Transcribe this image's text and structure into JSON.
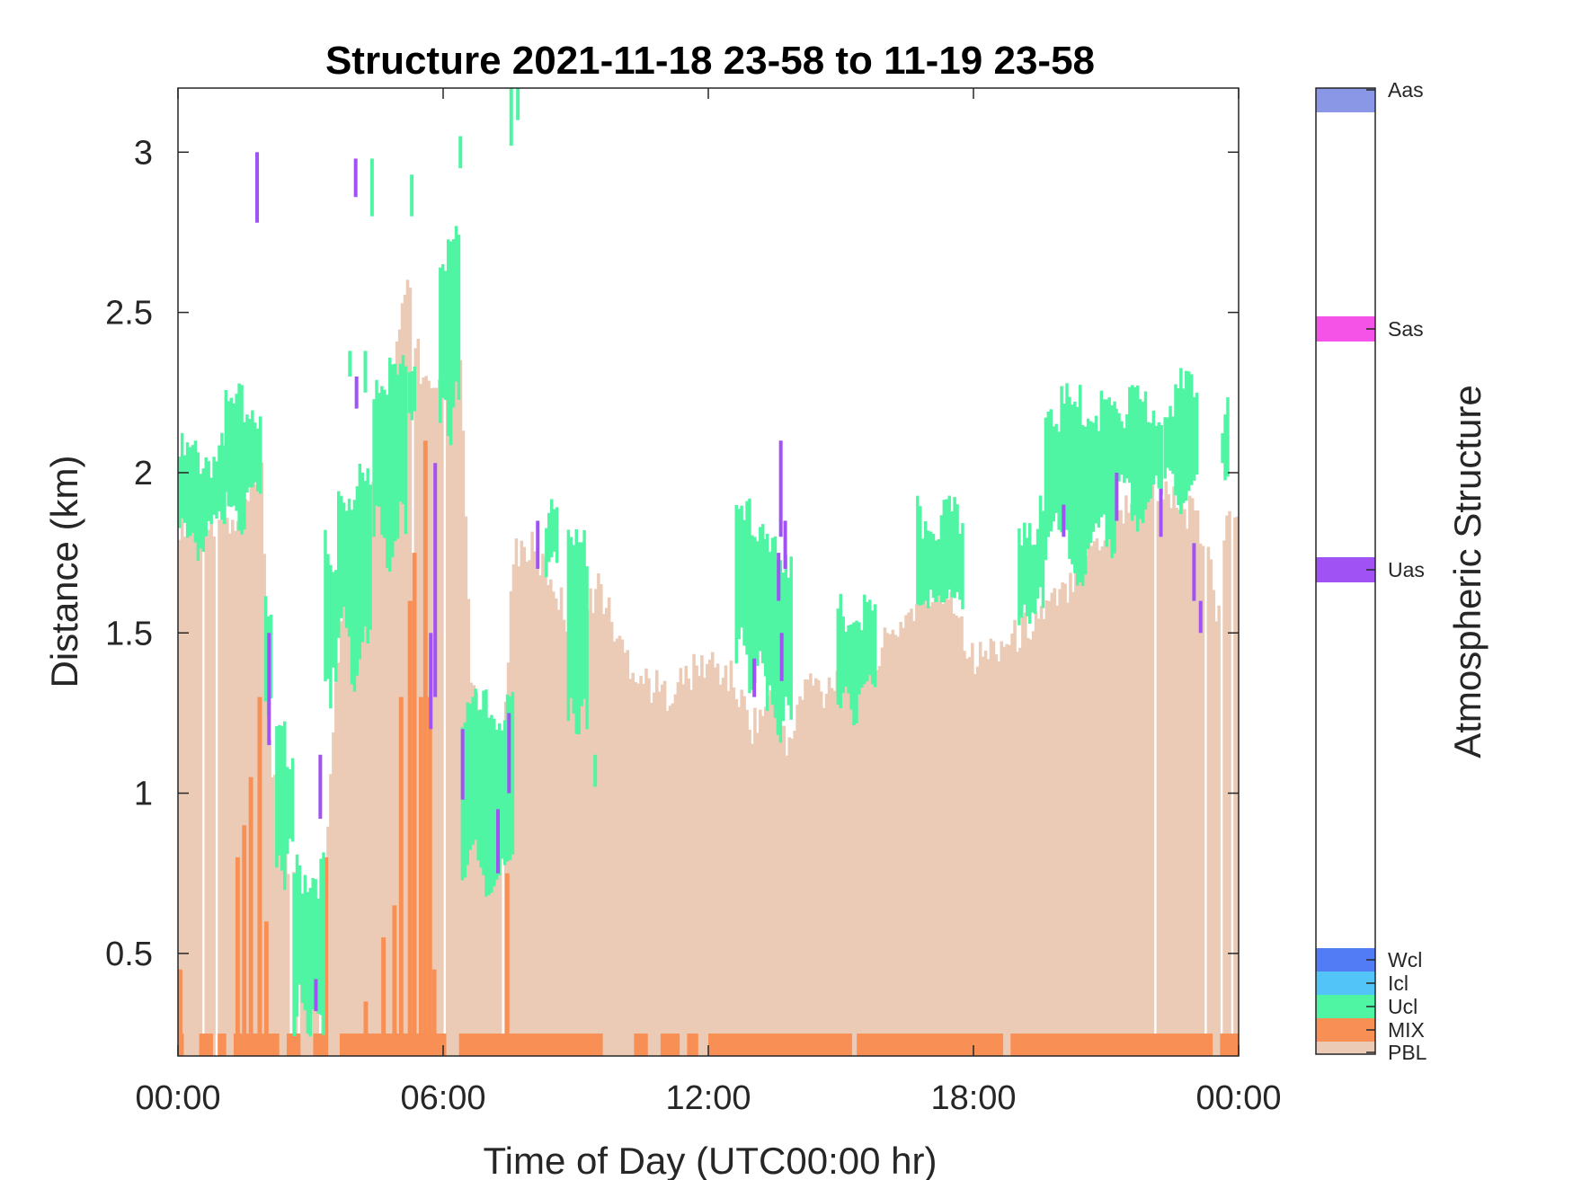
{
  "chart_data": {
    "type": "bar",
    "title": "Structure 2021-11-18 23-58 to 11-19 23-58",
    "xlabel": "Time of Day (UTC00:00 hr)",
    "ylabel": "Distance (km)",
    "colorbar_label": "Atmospheric Structure",
    "xlim": [
      0,
      24
    ],
    "ylim": [
      0.18,
      3.2
    ],
    "xticks": [
      0,
      6,
      12,
      18,
      24
    ],
    "xtick_labels": [
      "00:00",
      "06:00",
      "12:00",
      "18:00",
      "00:00"
    ],
    "yticks": [
      0.5,
      1,
      1.5,
      2,
      2.5,
      3
    ],
    "ytick_labels": [
      "0.5",
      "1",
      "1.5",
      "2",
      "2.5",
      "3"
    ],
    "grid": false,
    "legend": "right colorbar",
    "categories": [
      {
        "name": "PBL",
        "color": "#ebcbb6"
      },
      {
        "name": "MIX",
        "color": "#f88f55"
      },
      {
        "name": "Ucl",
        "color": "#4ff5a3"
      },
      {
        "name": "Icl",
        "color": "#53c4f8"
      },
      {
        "name": "Wcl",
        "color": "#527cf5"
      },
      {
        "name": "Uas",
        "color": "#a052f5"
      },
      {
        "name": "Sas",
        "color": "#f553e7"
      },
      {
        "name": "Aas",
        "color": "#8a96e6"
      }
    ],
    "pbl_profile": {
      "t": [
        0,
        0.5,
        1,
        1.3,
        1.5,
        1.8,
        1.9,
        2.1,
        2.4,
        2.7,
        3.0,
        3.2,
        3.4,
        3.7,
        4.0,
        4.3,
        4.6,
        4.9,
        5.2,
        5.5,
        5.8,
        6.0,
        6.2,
        6.4,
        6.6,
        6.8,
        7.0,
        7.2,
        7.4,
        7.6,
        8.0,
        8.5,
        9.0,
        9.5,
        10.0,
        10.5,
        11.0,
        11.5,
        12.0,
        12.5,
        13.0,
        13.5,
        13.8,
        14.0,
        14.3,
        14.6,
        15.0,
        15.5,
        16.0,
        16.5,
        17.0,
        17.5,
        18.0,
        18.5,
        19.0,
        19.5,
        20.0,
        20.5,
        21.0,
        21.5,
        22.0,
        22.5,
        23.0,
        23.3,
        23.5,
        23.8,
        24.0
      ],
      "h": [
        1.84,
        1.85,
        1.85,
        1.8,
        1.88,
        1.95,
        2.0,
        1.05,
        0.85,
        0.65,
        0.55,
        0.55,
        0.9,
        1.6,
        1.75,
        1.85,
        2.0,
        2.3,
        2.6,
        2.3,
        2.2,
        2.25,
        2.55,
        2.35,
        1.4,
        1.2,
        1.1,
        1.0,
        1.3,
        1.75,
        1.75,
        1.65,
        1.45,
        1.65,
        1.45,
        1.35,
        1.3,
        1.35,
        1.4,
        1.35,
        1.2,
        1.3,
        1.1,
        1.25,
        1.35,
        1.3,
        1.4,
        1.4,
        1.45,
        1.55,
        1.6,
        1.62,
        1.4,
        1.45,
        1.48,
        1.55,
        1.6,
        1.75,
        1.8,
        1.9,
        1.95,
        1.9,
        1.85,
        1.75,
        1.55,
        1.9,
        1.88
      ]
    },
    "gaps": [
      0.55,
      0.85,
      2.55,
      2.7,
      3.2,
      5.3,
      6.0,
      7.3,
      22.1,
      23.2,
      23.6,
      23.8
    ],
    "mix": {
      "base_top": 0.25,
      "base_gaps": [
        [
          0.1,
          0.45
        ],
        [
          0.75,
          0.85
        ],
        [
          1.05,
          1.25
        ],
        [
          2.25,
          2.45
        ],
        [
          2.75,
          3.05
        ],
        [
          3.35,
          3.65
        ],
        [
          6.05,
          6.35
        ],
        [
          9.6,
          10.3
        ],
        [
          10.6,
          10.9
        ],
        [
          11.3,
          11.5
        ],
        [
          11.75,
          11.95
        ],
        [
          15.2,
          15.35
        ],
        [
          18.6,
          18.8
        ],
        [
          23.35,
          23.55
        ]
      ],
      "columns": [
        {
          "t": 0.0,
          "h": 0.45
        },
        {
          "t": 1.3,
          "h": 0.8
        },
        {
          "t": 1.45,
          "h": 0.9
        },
        {
          "t": 1.6,
          "h": 1.05
        },
        {
          "t": 1.8,
          "h": 1.3
        },
        {
          "t": 1.95,
          "h": 0.6
        },
        {
          "t": 3.3,
          "h": 0.8
        },
        {
          "t": 4.2,
          "h": 0.35
        },
        {
          "t": 4.6,
          "h": 0.55
        },
        {
          "t": 4.85,
          "h": 0.65
        },
        {
          "t": 5.0,
          "h": 1.3
        },
        {
          "t": 5.2,
          "h": 1.6
        },
        {
          "t": 5.3,
          "h": 1.75
        },
        {
          "t": 5.45,
          "h": 1.3
        },
        {
          "t": 5.55,
          "h": 2.1
        },
        {
          "t": 5.65,
          "h": 1.3
        },
        {
          "t": 5.75,
          "h": 0.45
        },
        {
          "t": 7.4,
          "h": 0.75
        }
      ]
    },
    "ucl_segments": [
      {
        "t0": 0.0,
        "t1": 1.05,
        "base": 1.8,
        "top": 2.05
      },
      {
        "t0": 1.05,
        "t1": 1.9,
        "base": 1.9,
        "top": 2.2
      },
      {
        "t0": 1.95,
        "t1": 2.1,
        "base": 1.3,
        "top": 1.55
      },
      {
        "t0": 2.2,
        "t1": 2.6,
        "base": 0.8,
        "top": 1.15
      },
      {
        "t0": 2.6,
        "t1": 3.3,
        "base": 0.3,
        "top": 0.75
      },
      {
        "t0": 3.3,
        "t1": 3.6,
        "base": 1.3,
        "top": 1.75
      },
      {
        "t0": 3.6,
        "t1": 4.4,
        "base": 1.45,
        "top": 1.95
      },
      {
        "t0": 4.4,
        "t1": 5.2,
        "base": 1.8,
        "top": 2.3
      },
      {
        "t0": 5.2,
        "t1": 5.4,
        "base": 2.2,
        "top": 2.35
      },
      {
        "t0": 5.9,
        "t1": 6.4,
        "base": 2.2,
        "top": 2.7
      },
      {
        "t0": 6.4,
        "t1": 7.6,
        "base": 0.75,
        "top": 1.25
      },
      {
        "t0": 8.3,
        "t1": 8.6,
        "base": 1.7,
        "top": 1.85
      },
      {
        "t0": 8.8,
        "t1": 9.3,
        "base": 1.2,
        "top": 1.75
      },
      {
        "t0": 12.6,
        "t1": 13.3,
        "base": 1.4,
        "top": 1.85
      },
      {
        "t0": 13.3,
        "t1": 13.9,
        "base": 1.25,
        "top": 1.75
      },
      {
        "t0": 14.9,
        "t1": 15.8,
        "base": 1.3,
        "top": 1.55
      },
      {
        "t0": 16.7,
        "t1": 17.8,
        "base": 1.6,
        "top": 1.85
      },
      {
        "t0": 19.0,
        "t1": 19.6,
        "base": 1.55,
        "top": 1.85
      },
      {
        "t0": 19.6,
        "t1": 21.2,
        "base": 1.75,
        "top": 2.2
      },
      {
        "t0": 21.2,
        "t1": 22.3,
        "base": 1.9,
        "top": 2.2
      },
      {
        "t0": 22.3,
        "t1": 23.1,
        "base": 1.95,
        "top": 2.25
      },
      {
        "t0": 23.6,
        "t1": 23.8,
        "base": 2.0,
        "top": 2.2
      }
    ],
    "ucl_high": [
      {
        "t": 4.35,
        "h0": 2.8,
        "h1": 2.98
      },
      {
        "t": 5.25,
        "h0": 2.8,
        "h1": 2.93
      },
      {
        "t": 6.35,
        "h0": 2.95,
        "h1": 3.05
      },
      {
        "t": 7.5,
        "h0": 3.02,
        "h1": 3.2
      },
      {
        "t": 7.65,
        "h0": 3.1,
        "h1": 3.2
      },
      {
        "t": 3.85,
        "h0": 2.3,
        "h1": 2.38
      },
      {
        "t": 4.2,
        "h0": 2.25,
        "h1": 2.38
      },
      {
        "t": 9.4,
        "h0": 1.02,
        "h1": 1.12
      }
    ],
    "uas_segments": [
      {
        "t": 1.75,
        "h0": 2.78,
        "h1": 3.0
      },
      {
        "t": 3.98,
        "h0": 2.86,
        "h1": 2.98
      },
      {
        "t": 4.0,
        "h0": 2.2,
        "h1": 2.3
      },
      {
        "t": 2.02,
        "h0": 1.15,
        "h1": 1.5
      },
      {
        "t": 3.18,
        "h0": 0.92,
        "h1": 1.12
      },
      {
        "t": 3.08,
        "h0": 0.32,
        "h1": 0.42
      },
      {
        "t": 5.78,
        "h0": 1.3,
        "h1": 2.03
      },
      {
        "t": 5.68,
        "h0": 1.2,
        "h1": 1.5
      },
      {
        "t": 6.4,
        "h0": 0.98,
        "h1": 1.2
      },
      {
        "t": 7.2,
        "h0": 0.75,
        "h1": 0.95
      },
      {
        "t": 7.45,
        "h0": 1.0,
        "h1": 1.25
      },
      {
        "t": 8.1,
        "h0": 1.7,
        "h1": 1.85
      },
      {
        "t": 13.0,
        "h0": 1.3,
        "h1": 1.42
      },
      {
        "t": 13.55,
        "h0": 1.6,
        "h1": 1.75
      },
      {
        "t": 13.6,
        "h0": 1.8,
        "h1": 2.1
      },
      {
        "t": 13.7,
        "h0": 1.7,
        "h1": 1.85
      },
      {
        "t": 13.62,
        "h0": 1.35,
        "h1": 1.5
      },
      {
        "t": 20.0,
        "h0": 1.8,
        "h1": 1.9
      },
      {
        "t": 21.2,
        "h0": 1.85,
        "h1": 2.0
      },
      {
        "t": 22.2,
        "h0": 1.8,
        "h1": 1.95
      },
      {
        "t": 22.95,
        "h0": 1.6,
        "h1": 1.78
      },
      {
        "t": 23.1,
        "h0": 1.5,
        "h1": 1.6
      }
    ]
  }
}
